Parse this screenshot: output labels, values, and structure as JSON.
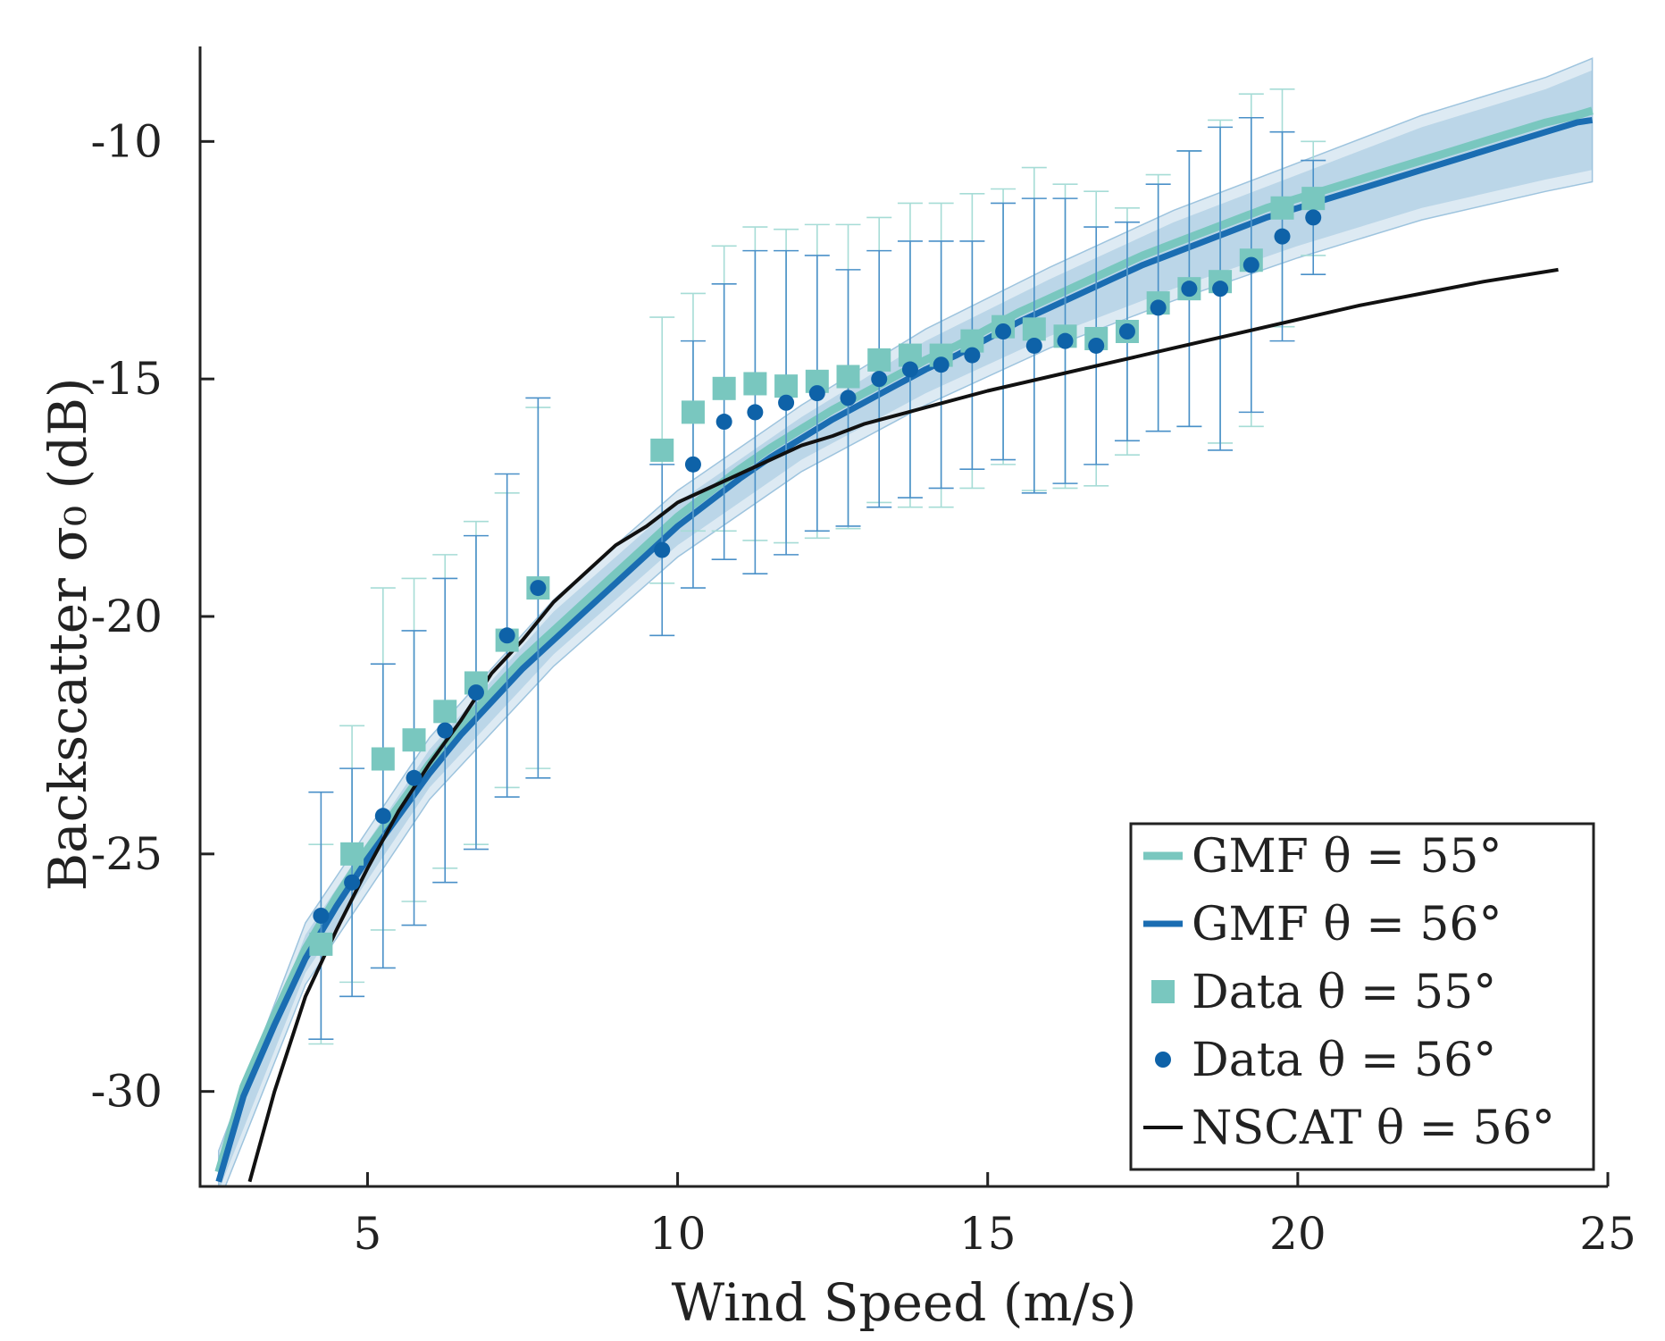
{
  "chart_data": {
    "type": "line",
    "xlabel": "Wind Speed (m/s)",
    "ylabel": "Backscatter σ₀ (dB)",
    "xlim": [
      2.3,
      25
    ],
    "ylim": [
      -32,
      -8
    ],
    "xticks": [
      5,
      10,
      15,
      20,
      25
    ],
    "xtick_labels": [
      "5",
      "10",
      "15",
      "20",
      "25"
    ],
    "yticks": [
      -30,
      -25,
      -20,
      -15,
      -10
    ],
    "ytick_labels": [
      "-30",
      "-25",
      "-20",
      "-15",
      "-10"
    ],
    "legend_position": "bottom-right",
    "colors": {
      "gmf55": "#79c7bf",
      "gmf56": "#1a6db2",
      "band": "#9ec4de",
      "data55": "#79c7bf",
      "data56": "#0e62a8",
      "err55": "#a6dcd6",
      "err56": "#4a90c8",
      "nscat": "#111111",
      "axis": "#222222"
    },
    "series": [
      {
        "name": "GMF θ = 55°",
        "kind": "line",
        "x": [
          2.6,
          3.0,
          3.5,
          4.0,
          4.5,
          5.0,
          5.5,
          6.0,
          6.5,
          7.0,
          7.5,
          8.0,
          8.5,
          9.0,
          9.5,
          10.0,
          10.5,
          11.0,
          11.5,
          12.0,
          12.5,
          13.0,
          13.5,
          14.0,
          14.5,
          15.0,
          15.5,
          16.0,
          16.5,
          17.0,
          17.5,
          18.0,
          18.5,
          19.0,
          19.5,
          20.0,
          20.5,
          21.0,
          21.5,
          22.0,
          22.5,
          23.0,
          23.5,
          24.0,
          24.5,
          24.75
        ],
        "y": [
          -31.7,
          -29.9,
          -28.4,
          -27.0,
          -25.9,
          -24.9,
          -24.0,
          -23.1,
          -22.3,
          -21.6,
          -20.9,
          -20.3,
          -19.7,
          -19.1,
          -18.5,
          -17.9,
          -17.4,
          -16.9,
          -16.45,
          -16.05,
          -15.65,
          -15.3,
          -14.95,
          -14.6,
          -14.3,
          -13.95,
          -13.6,
          -13.3,
          -13.0,
          -12.7,
          -12.4,
          -12.15,
          -11.9,
          -11.65,
          -11.4,
          -11.2,
          -11.0,
          -10.8,
          -10.6,
          -10.4,
          -10.2,
          -10.0,
          -9.8,
          -9.6,
          -9.45,
          -9.35
        ]
      },
      {
        "name": "GMF θ = 56°",
        "kind": "line",
        "x": [
          2.6,
          3.0,
          3.5,
          4.0,
          4.5,
          5.0,
          5.5,
          6.0,
          6.5,
          7.0,
          7.5,
          8.0,
          8.5,
          9.0,
          9.5,
          10.0,
          10.5,
          11.0,
          11.5,
          12.0,
          12.5,
          13.0,
          13.5,
          14.0,
          14.5,
          15.0,
          15.5,
          16.0,
          16.5,
          17.0,
          17.5,
          18.0,
          18.5,
          19.0,
          19.5,
          20.0,
          20.5,
          21.0,
          21.5,
          22.0,
          22.5,
          23.0,
          23.5,
          24.0,
          24.5,
          24.75
        ],
        "y": [
          -31.9,
          -30.1,
          -28.6,
          -27.2,
          -26.1,
          -25.1,
          -24.2,
          -23.3,
          -22.5,
          -21.8,
          -21.1,
          -20.5,
          -19.9,
          -19.3,
          -18.7,
          -18.1,
          -17.6,
          -17.1,
          -16.65,
          -16.25,
          -15.85,
          -15.5,
          -15.15,
          -14.8,
          -14.5,
          -14.15,
          -13.8,
          -13.5,
          -13.2,
          -12.9,
          -12.6,
          -12.35,
          -12.1,
          -11.85,
          -11.6,
          -11.4,
          -11.2,
          -11.0,
          -10.8,
          -10.6,
          -10.4,
          -10.2,
          -10.0,
          -9.8,
          -9.6,
          -9.55
        ]
      },
      {
        "name": "Data θ = 55°",
        "kind": "scatter",
        "marker": "square",
        "x": [
          4.25,
          4.75,
          5.25,
          5.75,
          6.25,
          6.75,
          7.25,
          7.75,
          9.75,
          10.25,
          10.75,
          11.25,
          11.75,
          12.25,
          12.75,
          13.25,
          13.75,
          14.25,
          14.75,
          15.25,
          15.75,
          16.25,
          16.75,
          17.25,
          17.75,
          18.25,
          18.75,
          19.25,
          19.75,
          20.25
        ],
        "y": [
          -26.9,
          -25.0,
          -23.0,
          -22.6,
          -22.0,
          -21.4,
          -20.5,
          -19.4,
          -16.5,
          -15.7,
          -15.2,
          -15.1,
          -15.15,
          -15.05,
          -14.95,
          -14.6,
          -14.5,
          -14.5,
          -14.2,
          -13.9,
          -13.95,
          -14.1,
          -14.15,
          -14.0,
          -13.4,
          -13.1,
          -12.95,
          -12.5,
          -11.4,
          -11.2
        ],
        "err": [
          2.1,
          2.7,
          3.6,
          3.4,
          3.3,
          3.4,
          3.1,
          3.8,
          2.8,
          2.5,
          3.0,
          3.3,
          3.3,
          3.3,
          3.2,
          3.0,
          3.2,
          3.2,
          3.1,
          2.9,
          3.4,
          3.2,
          3.1,
          2.6,
          2.7,
          2.9,
          3.4,
          3.5,
          2.5,
          1.2
        ]
      },
      {
        "name": "Data θ = 56°",
        "kind": "scatter",
        "marker": "circle",
        "x": [
          4.25,
          4.75,
          5.25,
          5.75,
          6.25,
          6.75,
          7.25,
          7.75,
          9.75,
          10.25,
          10.75,
          11.25,
          11.75,
          12.25,
          12.75,
          13.25,
          13.75,
          14.25,
          14.75,
          15.25,
          15.75,
          16.25,
          16.75,
          17.25,
          17.75,
          18.25,
          18.75,
          19.25,
          19.75,
          20.25
        ],
        "y": [
          -26.3,
          -25.6,
          -24.2,
          -23.4,
          -22.4,
          -21.6,
          -20.4,
          -19.4,
          -18.6,
          -16.8,
          -15.9,
          -15.7,
          -15.5,
          -15.3,
          -15.4,
          -15.0,
          -14.8,
          -14.7,
          -14.5,
          -14.0,
          -14.3,
          -14.2,
          -14.3,
          -14.0,
          -13.5,
          -13.1,
          -13.1,
          -12.6,
          -12.0,
          -11.6
        ],
        "err": [
          2.6,
          2.4,
          3.2,
          3.1,
          3.2,
          3.3,
          3.4,
          4.0,
          1.8,
          2.6,
          2.9,
          3.4,
          3.2,
          2.9,
          2.7,
          2.7,
          2.7,
          2.6,
          2.4,
          2.7,
          3.1,
          3.0,
          2.5,
          2.3,
          2.6,
          2.9,
          3.4,
          3.1,
          2.2,
          1.2
        ]
      },
      {
        "name": "NSCAT θ = 56°",
        "kind": "line",
        "x": [
          3.1,
          3.5,
          4.0,
          4.5,
          5.0,
          5.5,
          6.0,
          6.5,
          7.0,
          7.5,
          8.0,
          8.5,
          9.0,
          9.5,
          10.0,
          10.5,
          11.0,
          11.5,
          12.0,
          12.5,
          13.0,
          14.0,
          15.0,
          16.0,
          17.0,
          18.0,
          19.0,
          20.0,
          21.0,
          22.0,
          23.0,
          24.2
        ],
        "y": [
          -31.9,
          -30.0,
          -28.0,
          -26.6,
          -25.3,
          -24.1,
          -23.1,
          -22.2,
          -21.2,
          -20.5,
          -19.7,
          -19.1,
          -18.5,
          -18.1,
          -17.6,
          -17.3,
          -17.0,
          -16.7,
          -16.4,
          -16.2,
          -15.95,
          -15.6,
          -15.25,
          -14.95,
          -14.65,
          -14.35,
          -14.05,
          -13.75,
          -13.45,
          -13.2,
          -12.95,
          -12.7
        ]
      }
    ],
    "confidence_band": {
      "name": "GMF 56° uncertainty",
      "x": [
        2.6,
        4.0,
        6.0,
        8.0,
        10.0,
        12.0,
        14.0,
        16.0,
        18.0,
        20.0,
        22.0,
        24.0,
        24.75
      ],
      "lower": [
        -32.1,
        -27.5,
        -23.6,
        -20.8,
        -18.5,
        -16.7,
        -15.3,
        -14.1,
        -13.1,
        -12.2,
        -11.4,
        -10.8,
        -10.6
      ],
      "upper": [
        -31.5,
        -26.7,
        -22.8,
        -19.9,
        -17.6,
        -15.8,
        -14.2,
        -12.9,
        -11.7,
        -10.7,
        -9.7,
        -8.9,
        -8.5
      ]
    }
  }
}
